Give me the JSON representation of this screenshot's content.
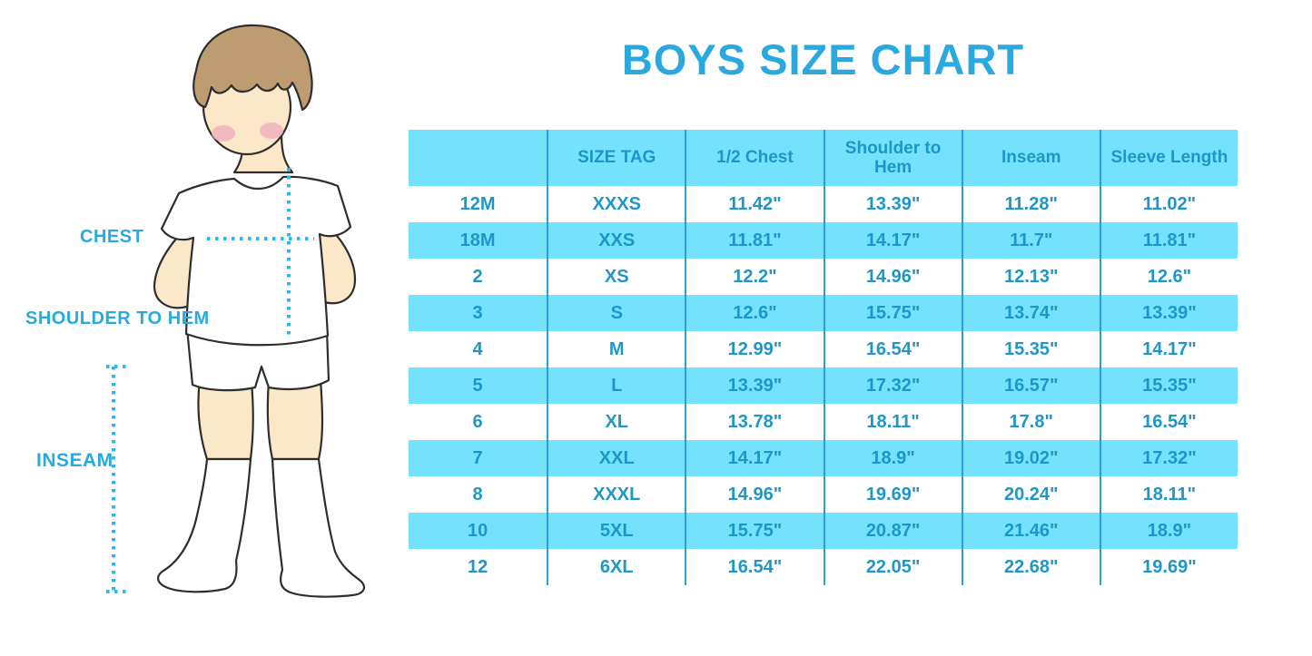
{
  "title": "BOYS SIZE CHART",
  "figure": {
    "name": "boy-measurement-illustration",
    "labels": {
      "chest": "CHEST",
      "shoulder_to_hem": "SHOULDER TO HEM",
      "inseam": "INSEAM"
    }
  },
  "colors": {
    "title_blue": "#29A9E0",
    "table_text_blue": "#1E96C8",
    "row_cyan": "#74E2FC",
    "column_divider_blue": "#2A9FD6",
    "dotted_measure_line": "#29B9EC",
    "skin": "#FBE8C8",
    "hair": "#BE9C72",
    "blush": "#F2AEC0",
    "outline": "#2E2E2E"
  },
  "chart_data": {
    "type": "table",
    "title": "BOYS SIZE CHART",
    "units": "inches",
    "columns": [
      "",
      "SIZE TAG",
      "1/2 Chest",
      "Shoulder to Hem",
      "Inseam",
      "Sleeve Length"
    ],
    "rows": [
      [
        "12M",
        "XXXS",
        "11.42\"",
        "13.39\"",
        "11.28\"",
        "11.02\""
      ],
      [
        "18M",
        "XXS",
        "11.81\"",
        "14.17\"",
        "11.7\"",
        "11.81\""
      ],
      [
        "2",
        "XS",
        "12.2\"",
        "14.96\"",
        "12.13\"",
        "12.6\""
      ],
      [
        "3",
        "S",
        "12.6\"",
        "15.75\"",
        "13.74\"",
        "13.39\""
      ],
      [
        "4",
        "M",
        "12.99\"",
        "16.54\"",
        "15.35\"",
        "14.17\""
      ],
      [
        "5",
        "L",
        "13.39\"",
        "17.32\"",
        "16.57\"",
        "15.35\""
      ],
      [
        "6",
        "XL",
        "13.78\"",
        "18.11\"",
        "17.8\"",
        "16.54\""
      ],
      [
        "7",
        "XXL",
        "14.17\"",
        "18.9\"",
        "19.02\"",
        "17.32\""
      ],
      [
        "8",
        "XXXL",
        "14.96\"",
        "19.69\"",
        "20.24\"",
        "18.11\""
      ],
      [
        "10",
        "5XL",
        "15.75\"",
        "20.87\"",
        "21.46\"",
        "18.9\""
      ],
      [
        "12",
        "6XL",
        "16.54\"",
        "22.05\"",
        "22.68\"",
        "19.69\""
      ]
    ]
  }
}
